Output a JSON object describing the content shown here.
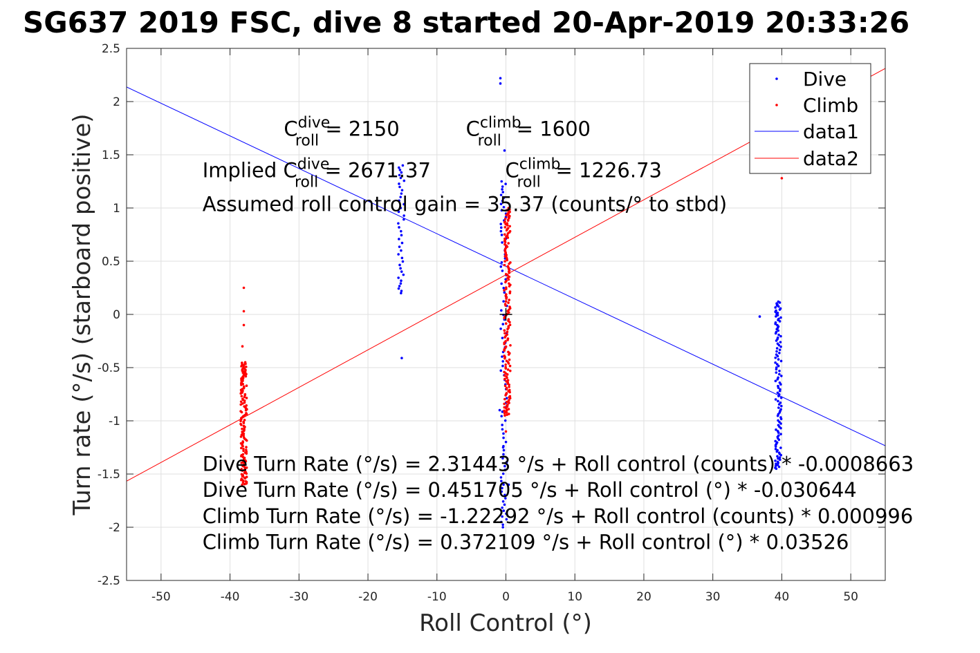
{
  "chart_data": {
    "type": "scatter",
    "title": "SG637 2019 FSC, dive 8 started 20-Apr-2019 20:33:26",
    "xlabel": "Roll Control (°)",
    "ylabel": "Turn rate (°/s) (starboard positive)",
    "xlim": [
      -55,
      55
    ],
    "ylim": [
      -2.5,
      2.5
    ],
    "xticks": [
      -50,
      -40,
      -30,
      -20,
      -10,
      0,
      10,
      20,
      30,
      40,
      50
    ],
    "yticks": [
      -2.5,
      -2,
      -1.5,
      -1,
      -0.5,
      0,
      0.5,
      1,
      1.5,
      2,
      2.5
    ],
    "xtick_labels": [
      "-50",
      "-40",
      "-30",
      "-20",
      "-10",
      "0",
      "10",
      "20",
      "30",
      "40",
      "50"
    ],
    "ytick_labels": [
      "-2.5",
      "-2",
      "-1.5",
      "-1",
      "-0.5",
      "0",
      "0.5",
      "1",
      "1.5",
      "2",
      "2.5"
    ],
    "grid": true,
    "legend_position": "top-right",
    "legend": [
      "Dive",
      "Climb",
      "data1",
      "data2"
    ],
    "colors": {
      "dive": "#0000ff",
      "climb": "#ff0000",
      "axes": "#262626",
      "grid": "#dfdfdf"
    },
    "lines": [
      {
        "name": "data1",
        "intercept": 0.451705,
        "slope": -0.030644,
        "color": "#0000ff"
      },
      {
        "name": "data2",
        "intercept": 0.372109,
        "slope": 0.03526,
        "color": "#ff0000"
      }
    ],
    "series": [
      {
        "name": "Dive",
        "color": "#0000ff",
        "clusters": [
          {
            "x": -15.2,
            "y_min": 0.2,
            "y_max": 1.4,
            "count": 40
          },
          {
            "x": -0.3,
            "y_min": -2.0,
            "y_max": 1.25,
            "count": 90
          },
          {
            "x": 39.5,
            "y_min": -1.45,
            "y_max": 0.12,
            "count": 120
          }
        ],
        "points": [
          {
            "x": -15.1,
            "y": -0.41
          },
          {
            "x": -0.8,
            "y": 2.22
          },
          {
            "x": -0.8,
            "y": 2.17
          },
          {
            "x": 36.8,
            "y": -0.02
          },
          {
            "x": -0.2,
            "y": 1.54
          },
          {
            "x": -0.9,
            "y": -0.9
          },
          {
            "x": -0.4,
            "y": -1.25
          },
          {
            "x": 0.4,
            "y": -1.6
          }
        ]
      },
      {
        "name": "Climb",
        "color": "#ff0000",
        "clusters": [
          {
            "x": -38,
            "y_min": -1.6,
            "y_max": -0.45,
            "count": 150
          },
          {
            "x": 0.2,
            "y_min": -0.95,
            "y_max": 1.0,
            "count": 180
          }
        ],
        "points": [
          {
            "x": -38.0,
            "y": 0.25
          },
          {
            "x": -38.0,
            "y": 0.03
          },
          {
            "x": -38.0,
            "y": -0.1
          },
          {
            "x": -38.2,
            "y": -0.3
          },
          {
            "x": 40.0,
            "y": 1.28
          },
          {
            "x": 0.0,
            "y": -1.1
          }
        ]
      }
    ],
    "annotations": [
      {
        "id": "c-dive",
        "base": "C",
        "sup": "dive",
        "sub": "roll",
        "rest": " = 2150",
        "x": -32.2,
        "y": 1.68
      },
      {
        "id": "c-climb",
        "base": "C",
        "sup": "climb",
        "sub": "roll",
        "rest": " = 1600",
        "x": -5.8,
        "y": 1.68
      },
      {
        "id": "implied-dive",
        "prefix": "Implied ",
        "base": "C",
        "sup": "dive",
        "sub": "roll",
        "rest": " = 2671.37",
        "x": -44.0,
        "y": 1.29
      },
      {
        "id": "implied-climb",
        "base": "C",
        "sup": "climb",
        "sub": "roll",
        "rest": " = 1226.73",
        "x": -0.1,
        "y": 1.29
      },
      {
        "id": "gain",
        "text": "Assumed roll control gain = 35.37 (counts/° to stbd)",
        "x": -44.0,
        "y": 0.97
      }
    ],
    "equations": [
      "Dive Turn Rate (°/s) = 2.31443 °/s + Roll control (counts) * -0.0008663",
      "Dive Turn Rate (°/s) = 0.451705 °/s + Roll control (°) * -0.030644",
      "Climb Turn Rate (°/s) = -1.22292 °/s + Roll control (counts) * 0.000996",
      "Climb Turn Rate (°/s) = 0.372109 °/s + Roll control (°) * 0.03526"
    ],
    "equations_position": {
      "x": -44.0,
      "y_start": -1.47,
      "y_step": -0.245
    },
    "marker": {
      "x": 0,
      "y": 0,
      "symbol": "+"
    }
  }
}
